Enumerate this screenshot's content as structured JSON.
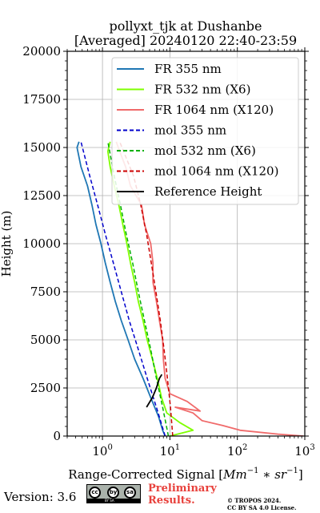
{
  "chart_data": {
    "type": "line",
    "title_line1": "pollyxt_tjk at Dushanbe",
    "title_line2": "[Averaged] 20240120 22:40-23:59",
    "xlabel_prefix": "Range-Corrected Signal [",
    "xlabel_math": "Mm",
    "xlabel_tail": "]",
    "ylabel": "Height (m)",
    "xscale": "log",
    "xlim": [
      0.3,
      1000
    ],
    "ylim": [
      0,
      20000
    ],
    "x_ticks": [
      1,
      10,
      100,
      1000
    ],
    "y_ticks": [
      "0",
      "2500",
      "5000",
      "7500",
      "10000",
      "12500",
      "15000",
      "17500",
      "20000"
    ],
    "grid": true,
    "legend_position": "top-right",
    "series": [
      {
        "name": "FR 355 nm",
        "color": "#1f77b4",
        "style": "solid",
        "points": [
          [
            8.5,
            0
          ],
          [
            7.8,
            300
          ],
          [
            6.8,
            1000
          ],
          [
            5.2,
            2000
          ],
          [
            4.0,
            3000
          ],
          [
            3.0,
            4000
          ],
          [
            2.4,
            5000
          ],
          [
            1.9,
            6000
          ],
          [
            1.55,
            7000
          ],
          [
            1.3,
            8000
          ],
          [
            1.1,
            9000
          ],
          [
            0.95,
            10000
          ],
          [
            0.8,
            11000
          ],
          [
            0.7,
            12000
          ],
          [
            0.6,
            13000
          ],
          [
            0.48,
            14000
          ],
          [
            0.42,
            15000
          ],
          [
            0.45,
            15300
          ]
        ]
      },
      {
        "name": "FR 532 nm (X6)",
        "color": "#7fff00",
        "style": "solid",
        "points": [
          [
            10,
            0
          ],
          [
            22,
            300
          ],
          [
            14,
            700
          ],
          [
            9,
            1200
          ],
          [
            7.5,
            2000
          ],
          [
            6.5,
            3000
          ],
          [
            5.5,
            4000
          ],
          [
            4.6,
            5000
          ],
          [
            4.0,
            6000
          ],
          [
            3.4,
            7000
          ],
          [
            3.0,
            8000
          ],
          [
            2.6,
            9000
          ],
          [
            2.3,
            10000
          ],
          [
            2.0,
            11000
          ],
          [
            1.75,
            12000
          ],
          [
            1.5,
            13000
          ],
          [
            1.3,
            14000
          ],
          [
            1.2,
            14800
          ],
          [
            1.3,
            15300
          ]
        ]
      },
      {
        "name": "FR 1064 nm (X120)",
        "color": "#f06a6a",
        "style": "solid",
        "points": [
          [
            950,
            0
          ],
          [
            400,
            100
          ],
          [
            110,
            300
          ],
          [
            60,
            550
          ],
          [
            30,
            800
          ],
          [
            22,
            1200
          ],
          [
            12,
            1500
          ],
          [
            28,
            1300
          ],
          [
            18,
            1800
          ],
          [
            10,
            2200
          ],
          [
            8.5,
            3000
          ],
          [
            8.0,
            4000
          ],
          [
            7.8,
            5000
          ],
          [
            7.0,
            6000
          ],
          [
            6.3,
            7000
          ],
          [
            5.6,
            8000
          ],
          [
            5.6,
            9000
          ],
          [
            5.2,
            10000
          ],
          [
            4.2,
            11000
          ],
          [
            3.8,
            12000
          ],
          [
            2.6,
            13000
          ],
          [
            2.2,
            14000
          ],
          [
            1.8,
            14800
          ],
          [
            1.6,
            15300
          ]
        ]
      },
      {
        "name": "mol 355 nm",
        "color": "#0000cc",
        "style": "dashed",
        "points": [
          [
            8.5,
            0
          ],
          [
            6.3,
            1500
          ],
          [
            4.6,
            3000
          ],
          [
            3.4,
            4500
          ],
          [
            2.5,
            6000
          ],
          [
            1.9,
            7500
          ],
          [
            1.45,
            9000
          ],
          [
            1.1,
            10500
          ],
          [
            0.85,
            12000
          ],
          [
            0.65,
            13500
          ],
          [
            0.48,
            15300
          ]
        ]
      },
      {
        "name": "mol 532 nm (X6)",
        "color": "#00b000",
        "style": "dashed",
        "points": [
          [
            9.5,
            0
          ],
          [
            7.8,
            1500
          ],
          [
            6.3,
            3000
          ],
          [
            5.2,
            4500
          ],
          [
            4.2,
            6000
          ],
          [
            3.4,
            7500
          ],
          [
            2.8,
            9000
          ],
          [
            2.25,
            10500
          ],
          [
            1.85,
            12000
          ],
          [
            1.5,
            13500
          ],
          [
            1.2,
            15300
          ]
        ]
      },
      {
        "name": "mol 1064 nm (X120)",
        "color": "#cc0000",
        "style": "dashed",
        "points": [
          [
            11,
            0
          ],
          [
            10.2,
            1500
          ],
          [
            9.2,
            3000
          ],
          [
            8.2,
            4500
          ],
          [
            7.2,
            6000
          ],
          [
            6.2,
            7500
          ],
          [
            5.3,
            9000
          ],
          [
            4.5,
            10500
          ],
          [
            3.7,
            12000
          ],
          [
            2.9,
            13500
          ],
          [
            1.8,
            15300
          ]
        ]
      },
      {
        "name": "Reference Height",
        "color": "#000000",
        "style": "solid",
        "points": [
          [
            4.5,
            1500
          ],
          [
            5.5,
            2000
          ],
          [
            6.3,
            2500
          ],
          [
            7.0,
            3000
          ],
          [
            7.6,
            3200
          ]
        ]
      }
    ]
  },
  "footer": {
    "version": "Version: 3.6",
    "cc_symbols": [
      "cc",
      "by",
      "sa"
    ],
    "cc_strip": "BY      SA",
    "preliminary_line1": "Preliminary",
    "preliminary_line2": "Results.",
    "tropos_line1": "© TROPOS 2024.",
    "tropos_line2": "CC BY SA 4.0 License."
  }
}
